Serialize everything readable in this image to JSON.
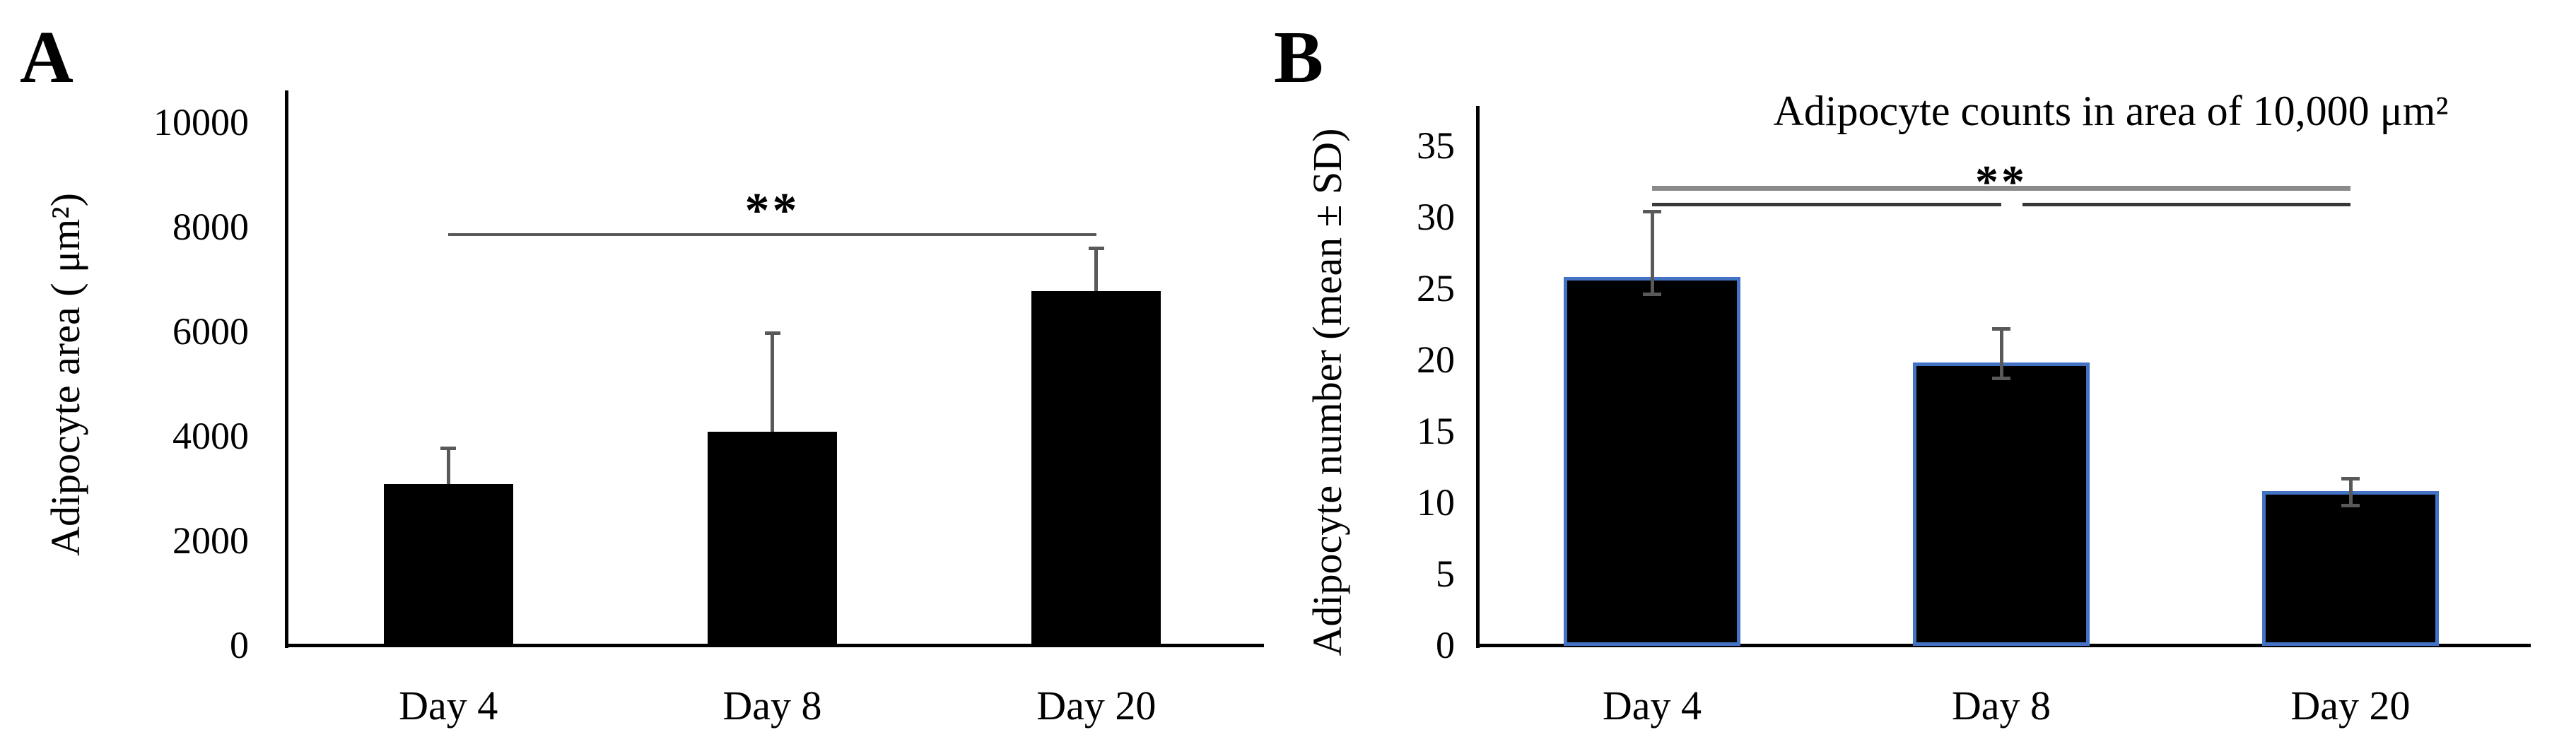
{
  "figure": {
    "background": "#ffffff",
    "text_color": "#000000"
  },
  "chart_data": [
    {
      "panel_label": "A",
      "type": "bar",
      "title": "",
      "categories": [
        "Day 4",
        "Day 8",
        "Day 20"
      ],
      "values": [
        3080,
        4080,
        6770
      ],
      "error_bars": {
        "top": [
          3770,
          5970,
          7590
        ],
        "bottom": [
          null,
          null,
          null
        ]
      },
      "ylabel": "Adipocyte area ( μm²)",
      "xlabel": "",
      "yticks": [
        "0",
        "2000",
        "4000",
        "6000",
        "8000",
        "10000"
      ],
      "ylim": [
        0,
        10600
      ],
      "grid": false,
      "legend": null,
      "bar_color": "#000000",
      "bar_border_color": null,
      "error_bar_color": "#595959",
      "significance": [
        {
          "label": "**",
          "from": "Day 4",
          "to": "Day 20",
          "level": 7880,
          "color": "#595959",
          "weight": 4
        }
      ]
    },
    {
      "panel_label": "B",
      "type": "bar",
      "title": "Adipocyte counts in area of 10,000 μm²",
      "categories": [
        "Day 4",
        "Day 8",
        "Day 20"
      ],
      "values": [
        25.8,
        19.8,
        10.8
      ],
      "error_bars": {
        "top": [
          30.4,
          22.2,
          11.7
        ],
        "bottom": [
          24.6,
          18.7,
          9.8
        ]
      },
      "ylabel": "Adipocyte number (mean ± SD)",
      "xlabel": "",
      "yticks": [
        "0",
        "5",
        "10",
        "15",
        "20",
        "25",
        "30",
        "35"
      ],
      "ylim": [
        0,
        37.8
      ],
      "grid": false,
      "legend": null,
      "bar_color": "#000000",
      "bar_border_color": "#4472C4",
      "error_bar_color": "#595959",
      "significance": [
        {
          "label": "**",
          "from": "Day 4",
          "to": "Day 20",
          "level": 32.2,
          "color": "#8a8a8a",
          "weight": 7
        },
        {
          "label": "",
          "from": "Day 4",
          "to": "Day 8",
          "level": 31.0,
          "color": "#383838",
          "weight": 5
        },
        {
          "label": "",
          "from": "Day 8",
          "to": "Day 20",
          "level": 31.0,
          "color": "#383838",
          "weight": 5,
          "inset_left": 30
        }
      ]
    }
  ]
}
